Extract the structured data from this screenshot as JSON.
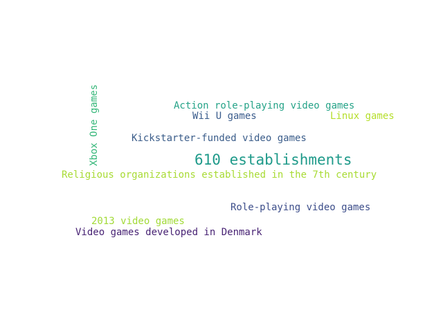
{
  "words": [
    {
      "text": "Action role-playing video games",
      "color": "#26a388"
    },
    {
      "text": "Wii U games",
      "color": "#3a5c8c"
    },
    {
      "text": "Linux games",
      "color": "#b5de2b"
    },
    {
      "text": "Xbox One games",
      "color": "#35b779"
    },
    {
      "text": "Kickstarter-funded video games",
      "color": "#3b5d8a"
    },
    {
      "text": "610 establishments",
      "color": "#1f9a8a"
    },
    {
      "text": "Religious organizations established in the 7th century",
      "color": "#a8db34"
    },
    {
      "text": "Role-playing video games",
      "color": "#3d4e8a"
    },
    {
      "text": "2013 video games",
      "color": "#a2da37"
    },
    {
      "text": "Video games developed in Denmark",
      "color": "#482374"
    }
  ]
}
